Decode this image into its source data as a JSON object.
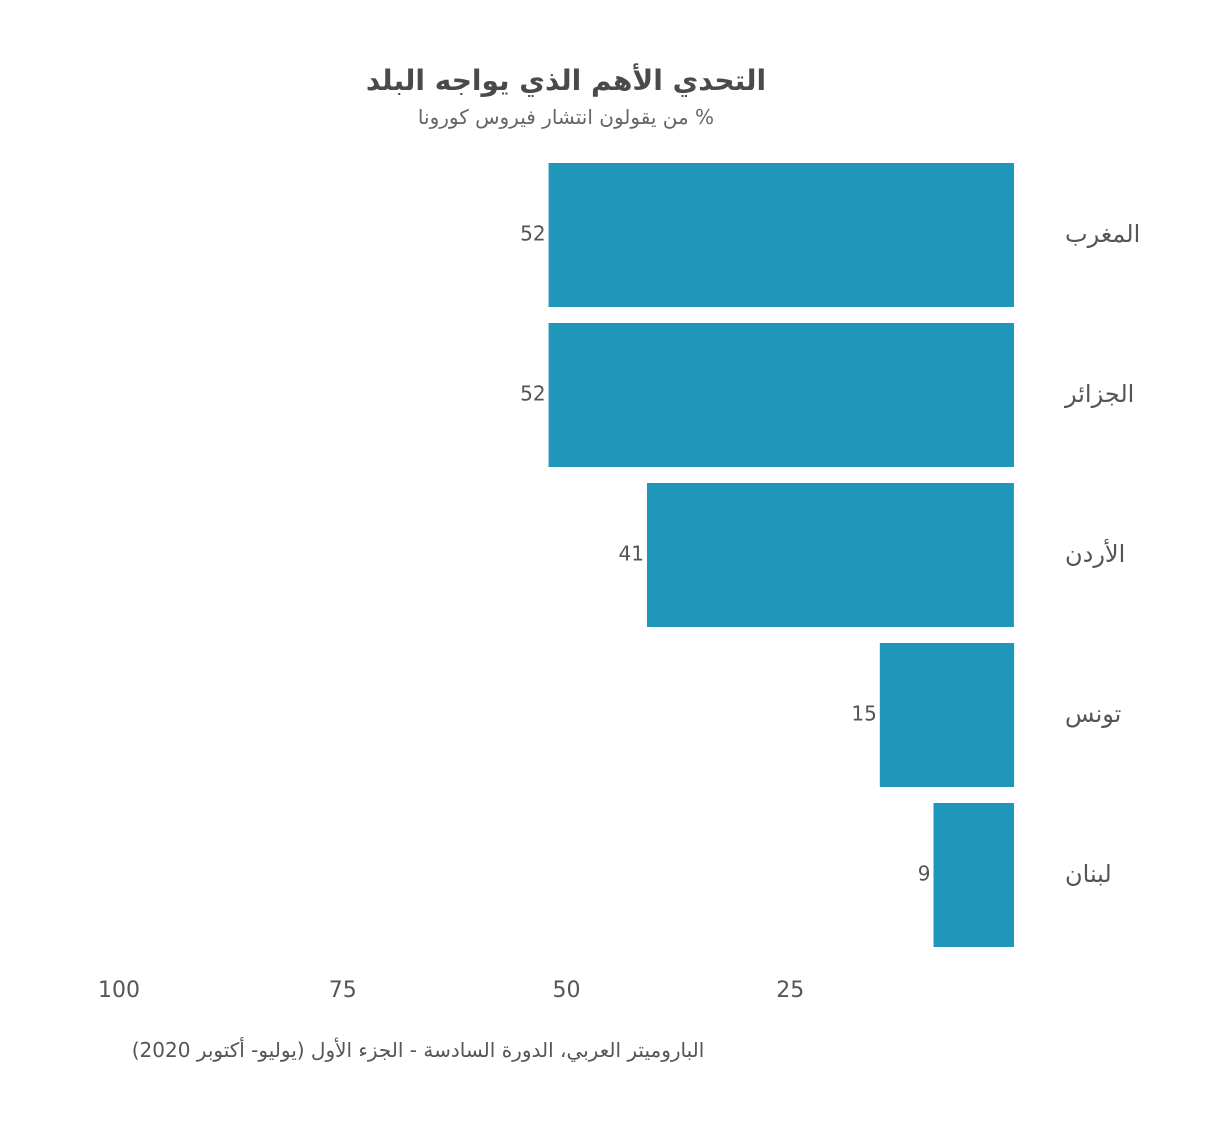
{
  "chart_data": {
    "type": "bar",
    "orientation": "horizontal",
    "direction": "right-to-left",
    "title": "التحدي الأهم الذي يواجه البلد",
    "subtitle": "% من يقولون انتشار فيروس كورونا",
    "categories": [
      "المغرب",
      "الجزائر",
      "الأردن",
      "تونس",
      "لبنان"
    ],
    "values": [
      52,
      52,
      41,
      15,
      9
    ],
    "value_labels": [
      "52",
      "52",
      "41",
      "15",
      "9"
    ],
    "xlim": [
      0,
      100
    ],
    "x_ticks": [
      100,
      75,
      50,
      25
    ],
    "x_tick_labels": [
      "100",
      "75",
      "50",
      "25"
    ],
    "xlabel": "",
    "ylabel": "",
    "grid": false,
    "legend": "none",
    "bar_color": "#2196bb",
    "caption": "الباروميتر العربي، الدورة السادسة - الجزء الأول (يوليو- أكتوبر 2020)"
  }
}
